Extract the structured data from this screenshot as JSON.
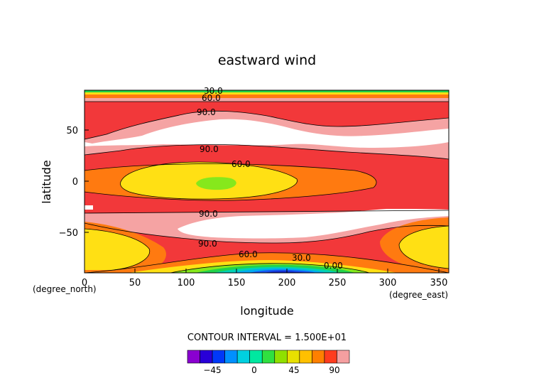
{
  "chart_data": {
    "type": "contour",
    "title": "eastward wind",
    "xlabel": "longitude",
    "ylabel": "latitude",
    "x_unit_label": "(degree_east)",
    "y_unit_label": "(degree_north)",
    "xlim": [
      0,
      360
    ],
    "ylim": [
      -90,
      90
    ],
    "x_ticks": [
      "0",
      "50",
      "100",
      "150",
      "200",
      "250",
      "300",
      "350"
    ],
    "y_ticks": [
      "50",
      "0",
      "−50"
    ],
    "contour_interval_text": "CONTOUR INTERVAL = 1.500E+01",
    "contour_labels": [
      "30.0",
      "60.0",
      "90.0",
      "90.0",
      "60.0",
      "90.0",
      "90.0",
      "60.0",
      "30.0",
      "0.00"
    ],
    "colorbar": {
      "tick_labels": [
        "−45",
        "0",
        "45",
        "90"
      ],
      "colors": [
        "#8a00d0",
        "#2800d8",
        "#0038f8",
        "#0090ff",
        "#00d0e0",
        "#00e8a0",
        "#30e040",
        "#90e000",
        "#e8e000",
        "#ffc000",
        "#ff8000",
        "#ff3c1e",
        "#f59fa0"
      ]
    },
    "levels": {
      "white": "#ffffff",
      "pink": "#f5a3a3",
      "red": "#f2383a",
      "orange": "#ff7a10",
      "yellow": "#ffe014",
      "lime": "#86e81c",
      "green": "#22d24a",
      "teal": "#00d2b4",
      "cyan": "#00aaf0",
      "blue": "#1656f0",
      "deepblue": "#1428c8"
    }
  }
}
